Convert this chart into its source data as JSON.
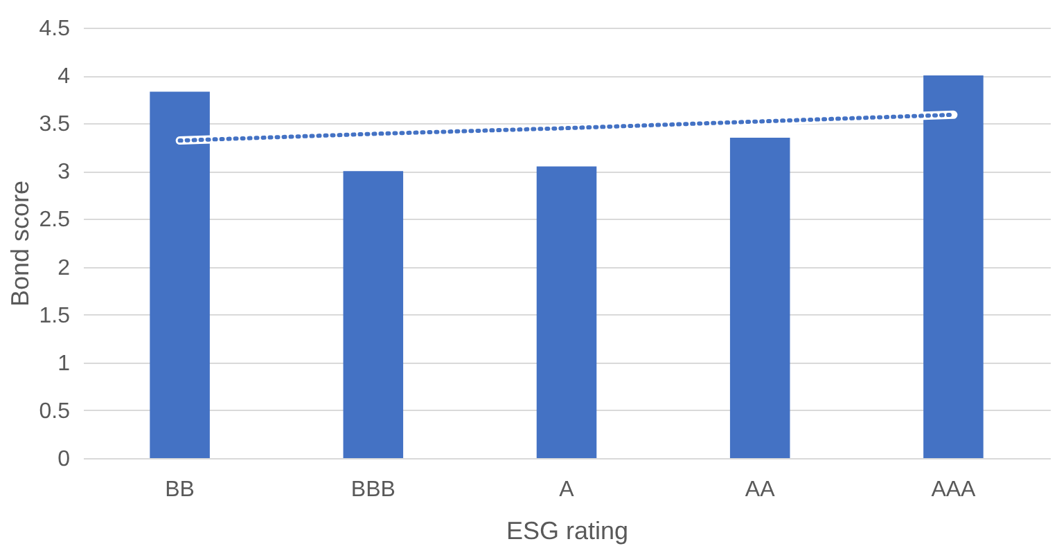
{
  "chart_data": {
    "type": "bar",
    "xlabel": "ESG rating",
    "ylabel": "Bond score",
    "categories": [
      "BB",
      "BBB",
      "A",
      "AA",
      "AAA"
    ],
    "series": [
      {
        "color": "#4472c4",
        "values": [
          3.83,
          3.0,
          3.05,
          3.35,
          4.0
        ]
      },
      {
        "type": "line",
        "color": "#4472c4",
        "line_style": "dotted",
        "values": [
          3.32,
          3.39,
          3.45,
          3.52,
          3.59
        ]
      }
    ],
    "ylim": [
      0,
      4.5
    ],
    "yticks": [
      0,
      0.5,
      1,
      1.5,
      2,
      2.5,
      3,
      3.5,
      4,
      4.5
    ],
    "grid": "y"
  }
}
